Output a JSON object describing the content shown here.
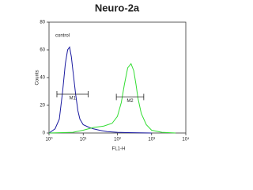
{
  "chart_data": {
    "type": "line",
    "title": "Neuro-2a",
    "x_label": "FL1-H",
    "y_label": "Counts",
    "log_x": true,
    "xlim": [
      1,
      10000
    ],
    "xticks": [
      {
        "value": 1,
        "label": "10⁰"
      },
      {
        "value": 10,
        "label": "10¹"
      },
      {
        "value": 100,
        "label": "10²"
      },
      {
        "value": 1000,
        "label": "10³"
      },
      {
        "value": 10000,
        "label": "10⁴"
      }
    ],
    "ylim": [
      0,
      80
    ],
    "yticks": [
      0,
      20,
      40,
      60,
      80
    ],
    "series": [
      {
        "name": "control",
        "color": "#1a1aa0",
        "x": [
          1,
          1.5,
          2,
          2.5,
          3,
          3.5,
          4,
          4.5,
          5,
          6,
          7,
          8,
          10,
          15,
          20,
          30,
          50,
          100,
          200,
          1000
        ],
        "values": [
          0,
          3,
          10,
          30,
          50,
          60,
          62,
          55,
          45,
          28,
          16,
          10,
          6,
          4,
          3,
          2,
          1,
          0.5,
          0.3,
          0
        ]
      },
      {
        "name": null,
        "color": "#33dd33",
        "x": [
          1,
          5,
          10,
          20,
          40,
          70,
          100,
          130,
          160,
          200,
          250,
          300,
          350,
          400,
          500,
          700,
          1000,
          2000,
          5000
        ],
        "values": [
          0,
          0.5,
          2,
          4,
          5,
          7,
          12,
          22,
          35,
          47,
          50,
          45,
          35,
          25,
          14,
          6,
          2,
          0.5,
          0
        ]
      }
    ],
    "gates": [
      {
        "label": "M1",
        "range": [
          1.7,
          14
        ],
        "level": 28
      },
      {
        "label": "M2",
        "range": [
          93,
          590
        ],
        "level": 26
      }
    ]
  }
}
